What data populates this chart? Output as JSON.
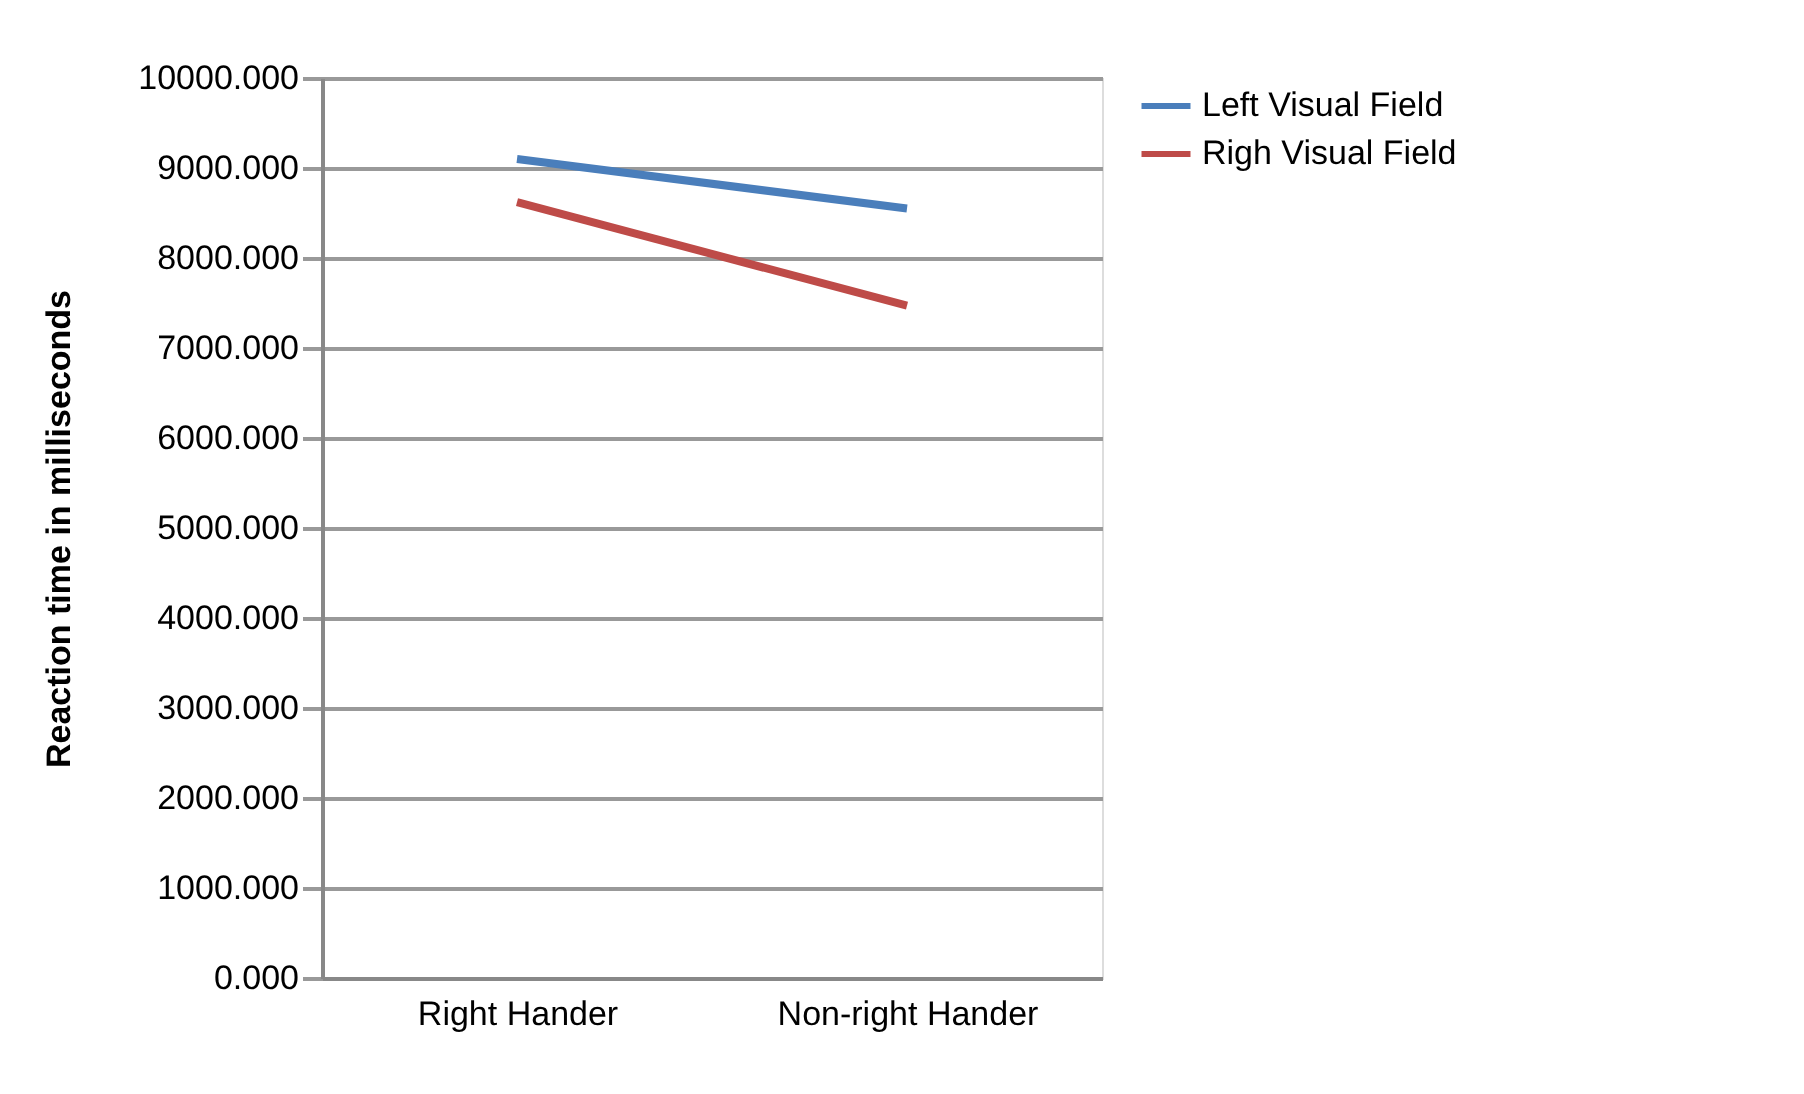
{
  "chart_data": {
    "type": "line",
    "ylabel": "Reaction time in milliseconds",
    "categories": [
      "Right Hander",
      "Non-right Hander"
    ],
    "series": [
      {
        "name": "Left Visual Field",
        "color": "#4a7ebb",
        "values": [
          9100,
          8550
        ]
      },
      {
        "name": "Righ Visual Field",
        "color": "#be4b48",
        "values": [
          8620,
          7470
        ]
      }
    ],
    "ylim": [
      0,
      10000
    ],
    "yticks": [
      {
        "value": 0,
        "label": "0.000"
      },
      {
        "value": 1000,
        "label": "1000.000"
      },
      {
        "value": 2000,
        "label": "2000.000"
      },
      {
        "value": 3000,
        "label": "3000.000"
      },
      {
        "value": 4000,
        "label": "4000.000"
      },
      {
        "value": 5000,
        "label": "5000.000"
      },
      {
        "value": 6000,
        "label": "6000.000"
      },
      {
        "value": 7000,
        "label": "7000.000"
      },
      {
        "value": 8000,
        "label": "8000.000"
      },
      {
        "value": 9000,
        "label": "9000.000"
      },
      {
        "value": 10000,
        "label": "10000.000"
      }
    ],
    "grid": "y",
    "legend": "right",
    "marker": "none",
    "line_style": "solid"
  }
}
